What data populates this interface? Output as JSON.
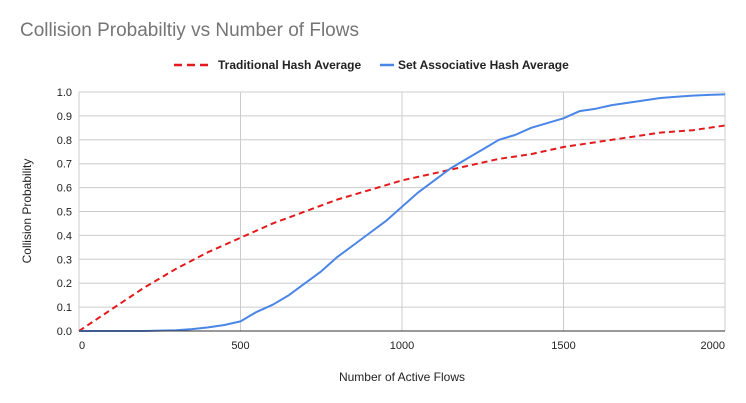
{
  "chart_data": {
    "type": "line",
    "title": "Collision Probabiltiy vs Number of Flows",
    "xlabel": "Number of Active Flows",
    "ylabel": "Collision Probability",
    "xlim": [
      0,
      2000
    ],
    "ylim": [
      0,
      1.0
    ],
    "x_ticks": [
      "0",
      "500",
      "1000",
      "1500",
      "2000"
    ],
    "y_ticks": [
      "0.0",
      "0.1",
      "0.2",
      "0.3",
      "0.4",
      "0.5",
      "0.6",
      "0.7",
      "0.8",
      "0.9",
      "1.0"
    ],
    "grid": true,
    "legend_position": "top",
    "series": [
      {
        "name": "Traditional Hash Average",
        "color": "#e31a1c",
        "style": "dashed",
        "x": [
          0,
          100,
          200,
          300,
          400,
          500,
          600,
          700,
          800,
          900,
          1000,
          1100,
          1200,
          1300,
          1400,
          1500,
          1600,
          1700,
          1800,
          1900,
          2000
        ],
        "y": [
          0,
          0.09,
          0.18,
          0.26,
          0.33,
          0.39,
          0.45,
          0.5,
          0.55,
          0.59,
          0.63,
          0.66,
          0.69,
          0.72,
          0.74,
          0.77,
          0.79,
          0.81,
          0.83,
          0.84,
          0.86
        ]
      },
      {
        "name": "Set Associative Hash Average",
        "color": "#4a86e8",
        "style": "solid",
        "x": [
          0,
          100,
          200,
          300,
          350,
          400,
          450,
          500,
          550,
          600,
          650,
          700,
          750,
          800,
          850,
          900,
          950,
          1000,
          1050,
          1100,
          1150,
          1200,
          1250,
          1300,
          1350,
          1400,
          1450,
          1500,
          1550,
          1600,
          1650,
          1700,
          1750,
          1800,
          1850,
          1900,
          1950,
          2000
        ],
        "y": [
          0,
          0,
          0,
          0.003,
          0.008,
          0.015,
          0.025,
          0.04,
          0.08,
          0.11,
          0.15,
          0.2,
          0.25,
          0.31,
          0.36,
          0.41,
          0.46,
          0.52,
          0.58,
          0.63,
          0.68,
          0.72,
          0.76,
          0.8,
          0.82,
          0.85,
          0.87,
          0.89,
          0.92,
          0.93,
          0.945,
          0.955,
          0.965,
          0.975,
          0.98,
          0.985,
          0.988,
          0.99
        ]
      }
    ]
  }
}
